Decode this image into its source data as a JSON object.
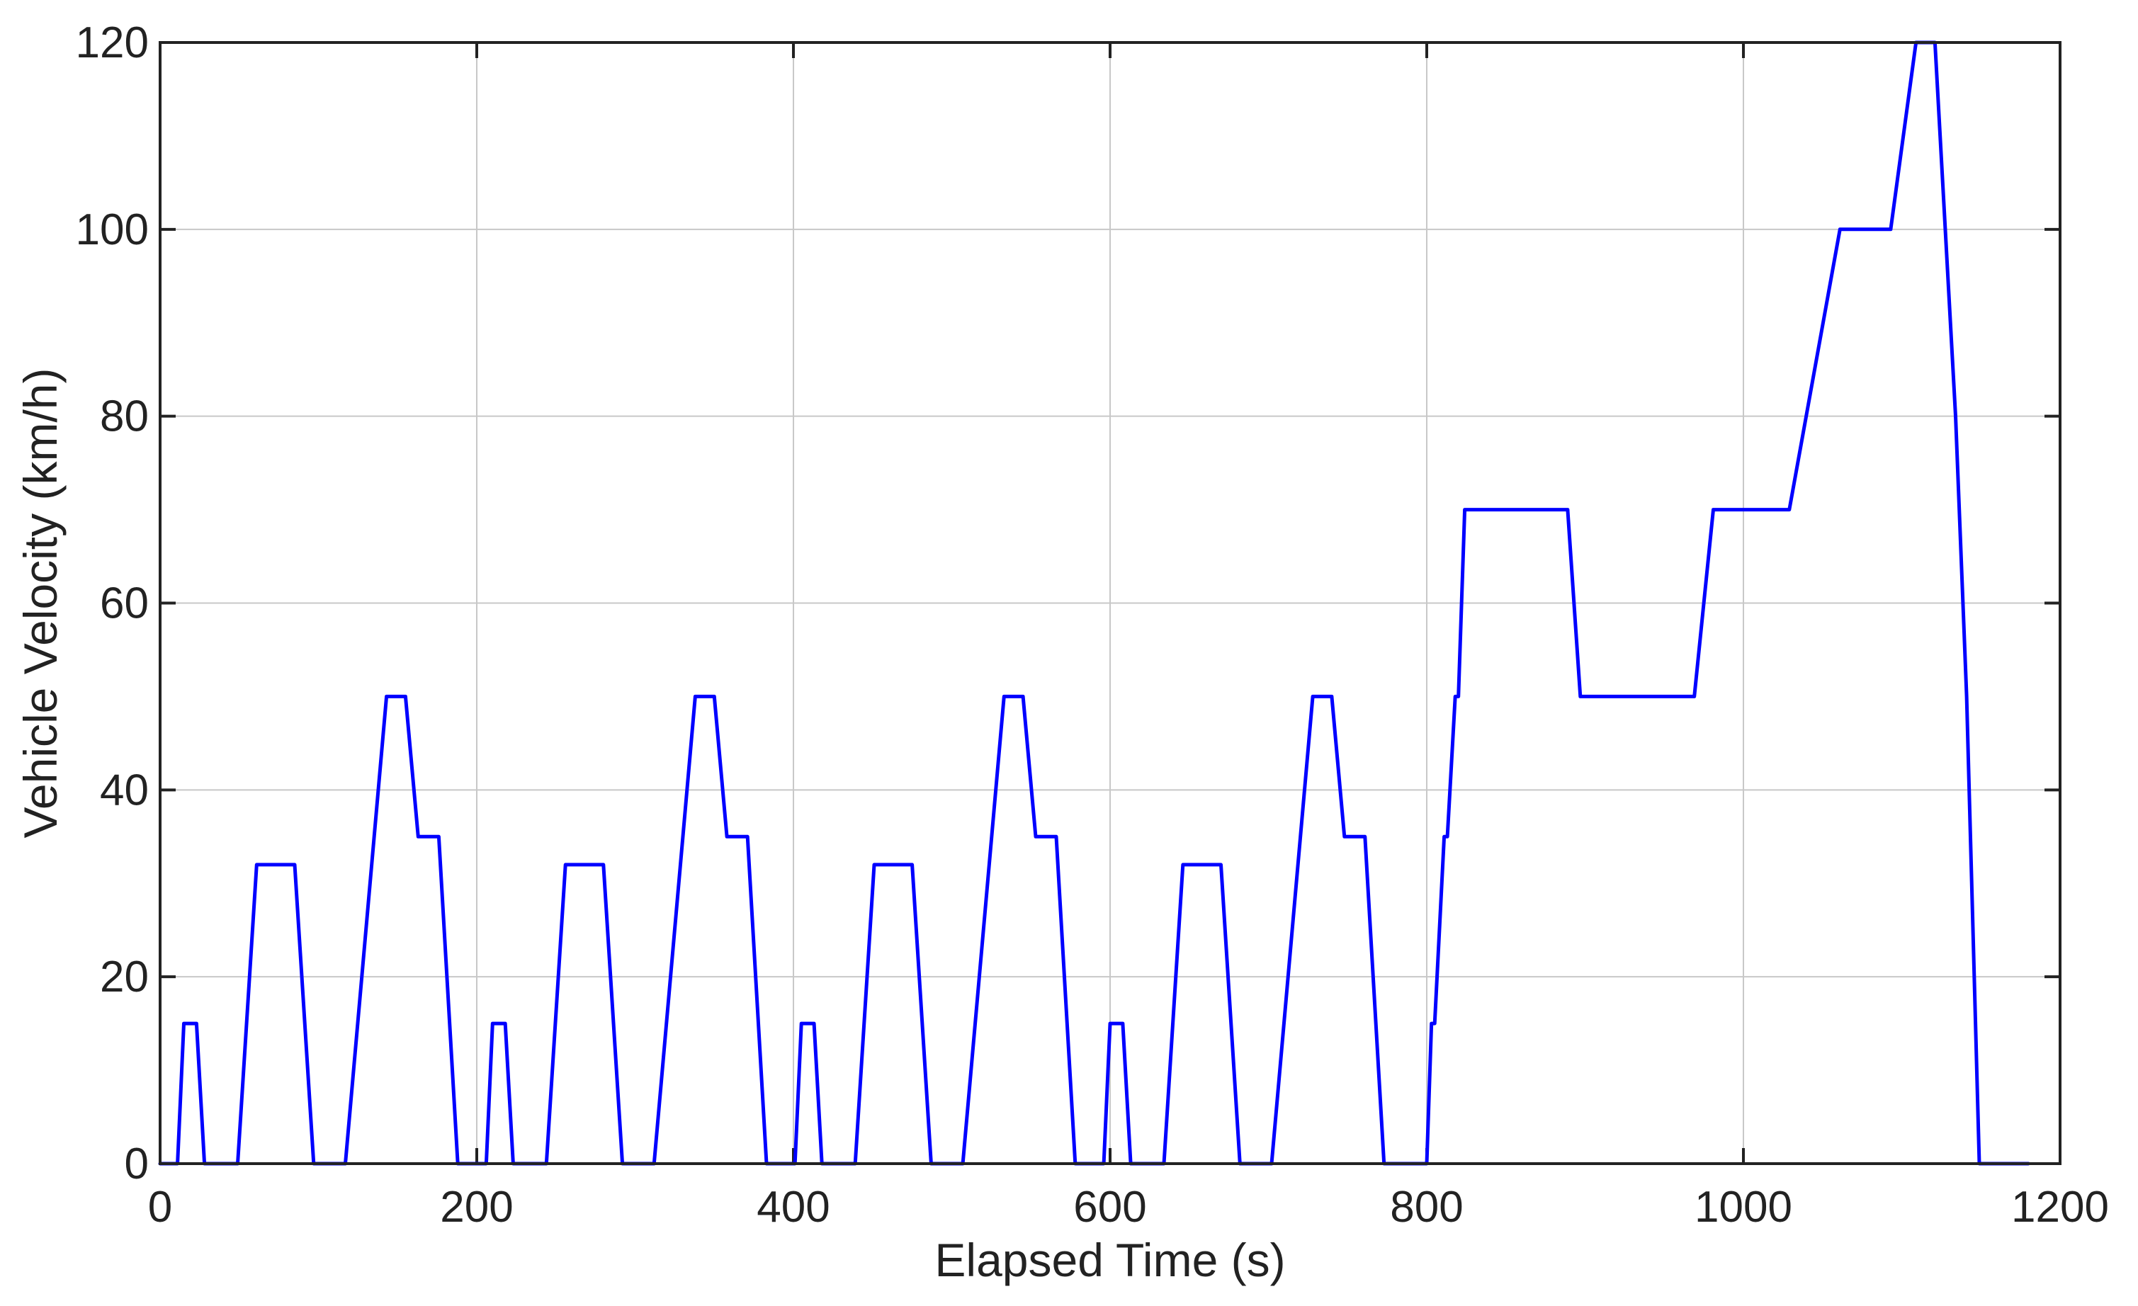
{
  "chart_data": {
    "type": "line",
    "xlabel": "Elapsed Time (s)",
    "ylabel": "Vehicle Velocity (km/h)",
    "xlim": [
      0,
      1200
    ],
    "ylim": [
      0,
      120
    ],
    "xticks": [
      0,
      200,
      400,
      600,
      800,
      1000,
      1200
    ],
    "yticks": [
      0,
      20,
      40,
      60,
      80,
      100,
      120
    ],
    "xtick_labels": [
      "0",
      "200",
      "400",
      "600",
      "800",
      "1000",
      "1200"
    ],
    "ytick_labels": [
      "0",
      "20",
      "40",
      "60",
      "80",
      "100",
      "120"
    ],
    "grid": true,
    "line_color": "#0000ff",
    "series": [
      {
        "x": [
          0,
          11,
          15,
          23,
          28,
          49,
          61,
          85,
          97,
          117,
          143,
          155,
          163,
          176,
          188,
          195,
          206,
          210,
          218,
          223,
          244,
          256,
          280,
          292,
          312,
          338,
          350,
          358,
          371,
          383,
          390,
          401,
          405,
          413,
          418,
          439,
          451,
          475,
          487,
          507,
          533,
          545,
          553,
          566,
          578,
          585,
          596,
          600,
          608,
          613,
          634,
          646,
          670,
          682,
          702,
          728,
          740,
          748,
          761,
          773,
          780,
          800,
          803,
          805,
          811,
          813,
          818,
          820,
          824,
          826,
          839,
          889,
          897,
          969,
          981,
          1029,
          1061,
          1093,
          1109,
          1121,
          1134,
          1141,
          1149,
          1161,
          1180
        ],
        "y": [
          0,
          0,
          15,
          15,
          0,
          0,
          32,
          32,
          0,
          0,
          50,
          50,
          35,
          35,
          0,
          0,
          0,
          15,
          15,
          0,
          0,
          32,
          32,
          0,
          0,
          50,
          50,
          35,
          35,
          0,
          0,
          0,
          15,
          15,
          0,
          0,
          32,
          32,
          0,
          0,
          50,
          50,
          35,
          35,
          0,
          0,
          0,
          15,
          15,
          0,
          0,
          32,
          32,
          0,
          0,
          50,
          50,
          35,
          35,
          0,
          0,
          0,
          15,
          15,
          35,
          35,
          50,
          50,
          70,
          70,
          70,
          70,
          50,
          50,
          70,
          70,
          100,
          100,
          120,
          120,
          80,
          50,
          0,
          0,
          0
        ]
      }
    ]
  }
}
